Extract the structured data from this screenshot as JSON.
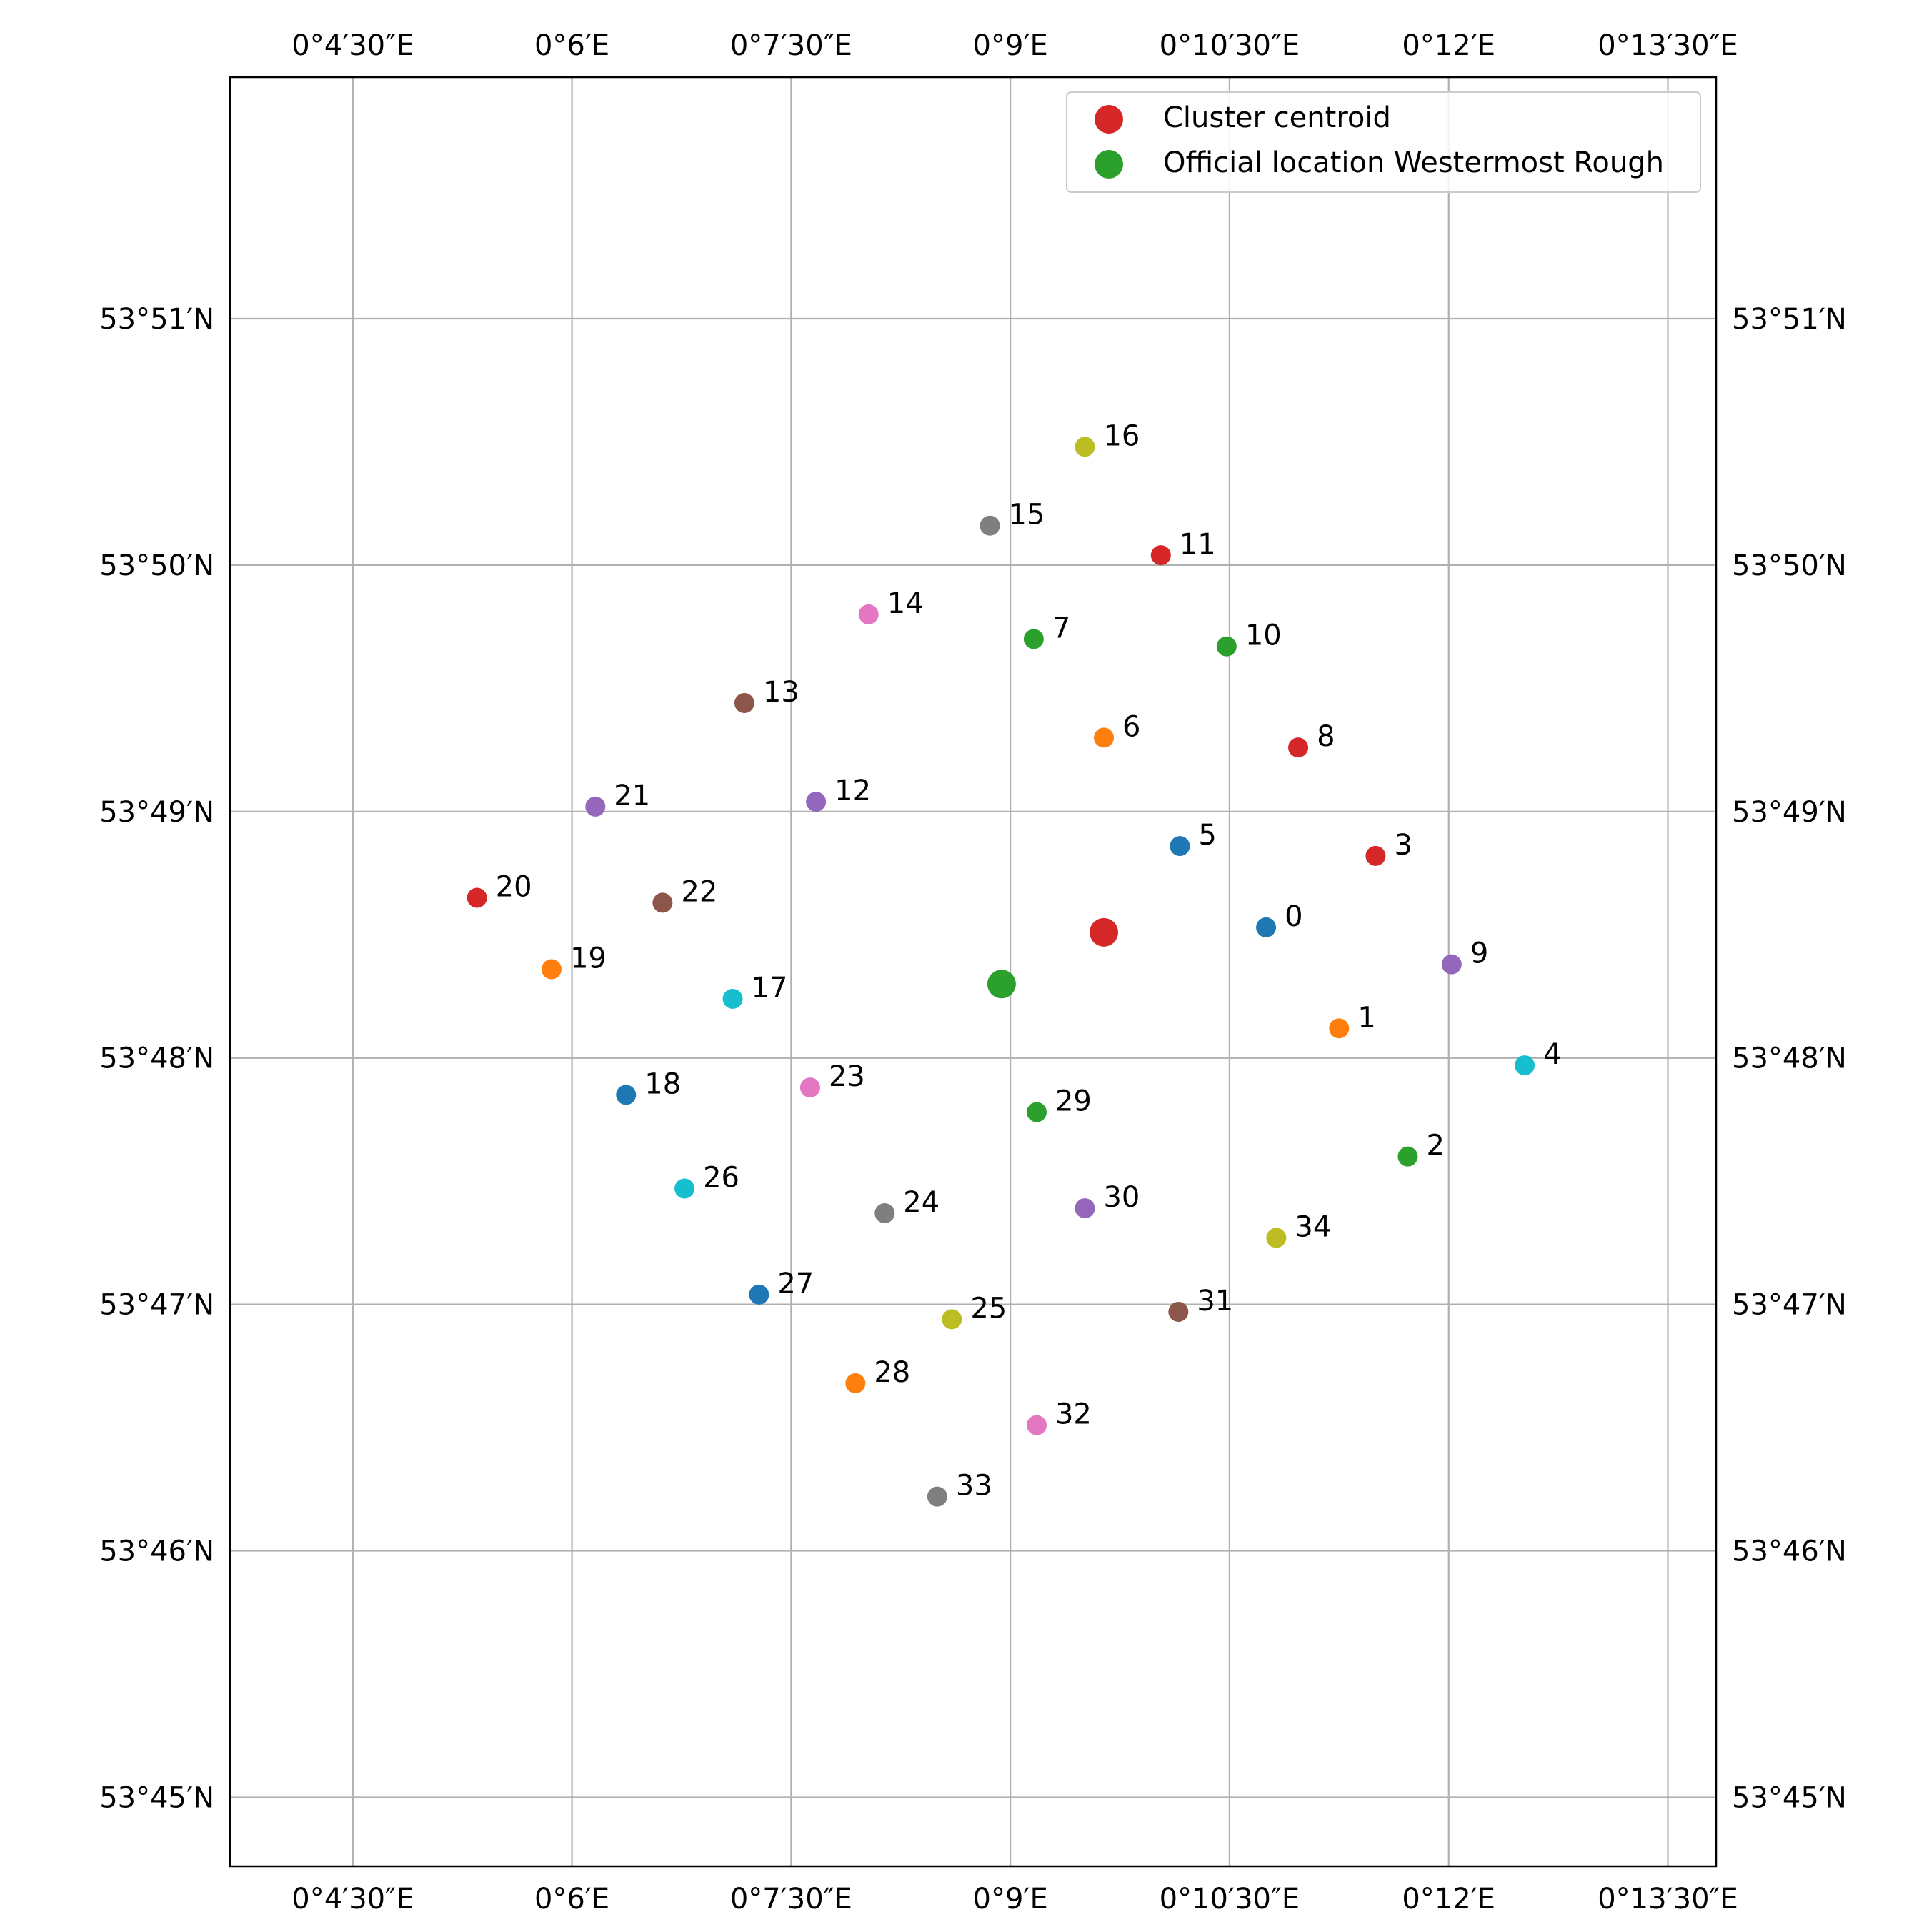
{
  "chart_data": {
    "type": "scatter",
    "title": "",
    "xlabel": "",
    "ylabel": "",
    "grid": true,
    "legend_position": "upper-right",
    "xlim_minutes_east": [
      3.66,
      13.83
    ],
    "ylim_minutes_north": [
      44.72,
      51.98
    ],
    "x_ticks": [
      {
        "value": 4.5,
        "label": "0°4′30″E"
      },
      {
        "value": 6,
        "label": "0°6′E"
      },
      {
        "value": 7.5,
        "label": "0°7′30″E"
      },
      {
        "value": 9,
        "label": "0°9′E"
      },
      {
        "value": 10.5,
        "label": "0°10′30″E"
      },
      {
        "value": 12,
        "label": "0°12′E"
      },
      {
        "value": 13.5,
        "label": "0°13′30″E"
      }
    ],
    "y_ticks": [
      {
        "value": 45,
        "label": "53°45′N"
      },
      {
        "value": 46,
        "label": "53°46′N"
      },
      {
        "value": 47,
        "label": "53°47′N"
      },
      {
        "value": 48,
        "label": "53°48′N"
      },
      {
        "value": 49,
        "label": "53°49′N"
      },
      {
        "value": 50,
        "label": "53°50′N"
      },
      {
        "value": 51,
        "label": "53°51′N"
      }
    ],
    "points": [
      {
        "label": "0",
        "lon": 10.75,
        "lat": 48.53,
        "color": "#1f77b4"
      },
      {
        "label": "1",
        "lon": 11.25,
        "lat": 48.12,
        "color": "#ff7f0e"
      },
      {
        "label": "2",
        "lon": 11.72,
        "lat": 47.6,
        "color": "#2ca02c"
      },
      {
        "label": "3",
        "lon": 11.5,
        "lat": 48.82,
        "color": "#d62728"
      },
      {
        "label": "4",
        "lon": 12.52,
        "lat": 47.97,
        "color": "#17becf"
      },
      {
        "label": "5",
        "lon": 10.16,
        "lat": 48.86,
        "color": "#1f77b4"
      },
      {
        "label": "6",
        "lon": 9.64,
        "lat": 49.3,
        "color": "#ff7f0e"
      },
      {
        "label": "7",
        "lon": 9.16,
        "lat": 49.7,
        "color": "#2ca02c"
      },
      {
        "label": "8",
        "lon": 10.97,
        "lat": 49.26,
        "color": "#d62728"
      },
      {
        "label": "9",
        "lon": 12.02,
        "lat": 48.38,
        "color": "#9467bd"
      },
      {
        "label": "10",
        "lon": 10.48,
        "lat": 49.67,
        "color": "#2ca02c"
      },
      {
        "label": "11",
        "lon": 10.03,
        "lat": 50.04,
        "color": "#d62728"
      },
      {
        "label": "12",
        "lon": 7.67,
        "lat": 49.04,
        "color": "#9467bd"
      },
      {
        "label": "13",
        "lon": 7.18,
        "lat": 49.44,
        "color": "#8c564b"
      },
      {
        "label": "14",
        "lon": 8.03,
        "lat": 49.8,
        "color": "#e377c2"
      },
      {
        "label": "15",
        "lon": 8.86,
        "lat": 50.16,
        "color": "#7f7f7f"
      },
      {
        "label": "16",
        "lon": 9.51,
        "lat": 50.48,
        "color": "#bcbd22"
      },
      {
        "label": "17",
        "lon": 7.1,
        "lat": 48.24,
        "color": "#17becf"
      },
      {
        "label": "18",
        "lon": 6.37,
        "lat": 47.85,
        "color": "#1f77b4"
      },
      {
        "label": "19",
        "lon": 5.86,
        "lat": 48.36,
        "color": "#ff7f0e"
      },
      {
        "label": "20",
        "lon": 5.35,
        "lat": 48.65,
        "color": "#d62728"
      },
      {
        "label": "21",
        "lon": 6.16,
        "lat": 49.02,
        "color": "#9467bd"
      },
      {
        "label": "22",
        "lon": 6.62,
        "lat": 48.63,
        "color": "#8c564b"
      },
      {
        "label": "23",
        "lon": 7.63,
        "lat": 47.88,
        "color": "#e377c2"
      },
      {
        "label": "24",
        "lon": 8.14,
        "lat": 47.37,
        "color": "#7f7f7f"
      },
      {
        "label": "25",
        "lon": 8.6,
        "lat": 46.94,
        "color": "#bcbd22"
      },
      {
        "label": "26",
        "lon": 6.77,
        "lat": 47.47,
        "color": "#17becf"
      },
      {
        "label": "27",
        "lon": 7.28,
        "lat": 47.04,
        "color": "#1f77b4"
      },
      {
        "label": "28",
        "lon": 7.94,
        "lat": 46.68,
        "color": "#ff7f0e"
      },
      {
        "label": "29",
        "lon": 9.18,
        "lat": 47.78,
        "color": "#2ca02c"
      },
      {
        "label": "30",
        "lon": 9.51,
        "lat": 47.39,
        "color": "#9467bd"
      },
      {
        "label": "31",
        "lon": 10.15,
        "lat": 46.97,
        "color": "#8c564b"
      },
      {
        "label": "32",
        "lon": 9.18,
        "lat": 46.51,
        "color": "#e377c2"
      },
      {
        "label": "33",
        "lon": 8.5,
        "lat": 46.22,
        "color": "#7f7f7f"
      },
      {
        "label": "34",
        "lon": 10.82,
        "lat": 47.27,
        "color": "#bcbd22"
      }
    ],
    "special_points": [
      {
        "name": "Cluster centroid",
        "lon": 9.64,
        "lat": 48.51,
        "color": "#d62728"
      },
      {
        "name": "Official location Westermost Rough",
        "lon": 8.94,
        "lat": 48.3,
        "color": "#2ca02c"
      }
    ],
    "legend": [
      {
        "label": "Cluster centroid",
        "color": "#d62728"
      },
      {
        "label": "Official location Westermost Rough",
        "color": "#2ca02c"
      }
    ]
  }
}
